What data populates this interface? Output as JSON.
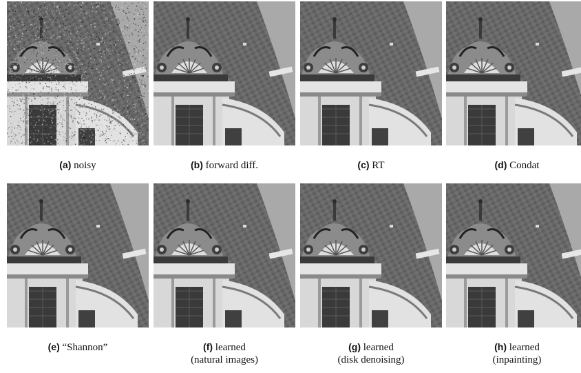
{
  "figure": {
    "panels": [
      {
        "id": "a",
        "letter": "(a)",
        "text": "noisy",
        "line2": "",
        "noisy": true
      },
      {
        "id": "b",
        "letter": "(b)",
        "text": "forward diff.",
        "line2": "",
        "noisy": false
      },
      {
        "id": "c",
        "letter": "(c)",
        "text": "RT",
        "line2": "",
        "noisy": false
      },
      {
        "id": "d",
        "letter": "(d)",
        "text": "Condat",
        "line2": "",
        "noisy": false
      },
      {
        "id": "e",
        "letter": "(e)",
        "text": "“Shannon”",
        "line2": "",
        "noisy": false
      },
      {
        "id": "f",
        "letter": "(f)",
        "text": "learned",
        "line2": "(natural images)",
        "noisy": false
      },
      {
        "id": "g",
        "letter": "(g)",
        "text": "learned",
        "line2": "(disk denoising)",
        "noisy": false
      },
      {
        "id": "h",
        "letter": "(h)",
        "text": "learned",
        "line2": "(inpainting)",
        "noisy": false
      }
    ]
  }
}
